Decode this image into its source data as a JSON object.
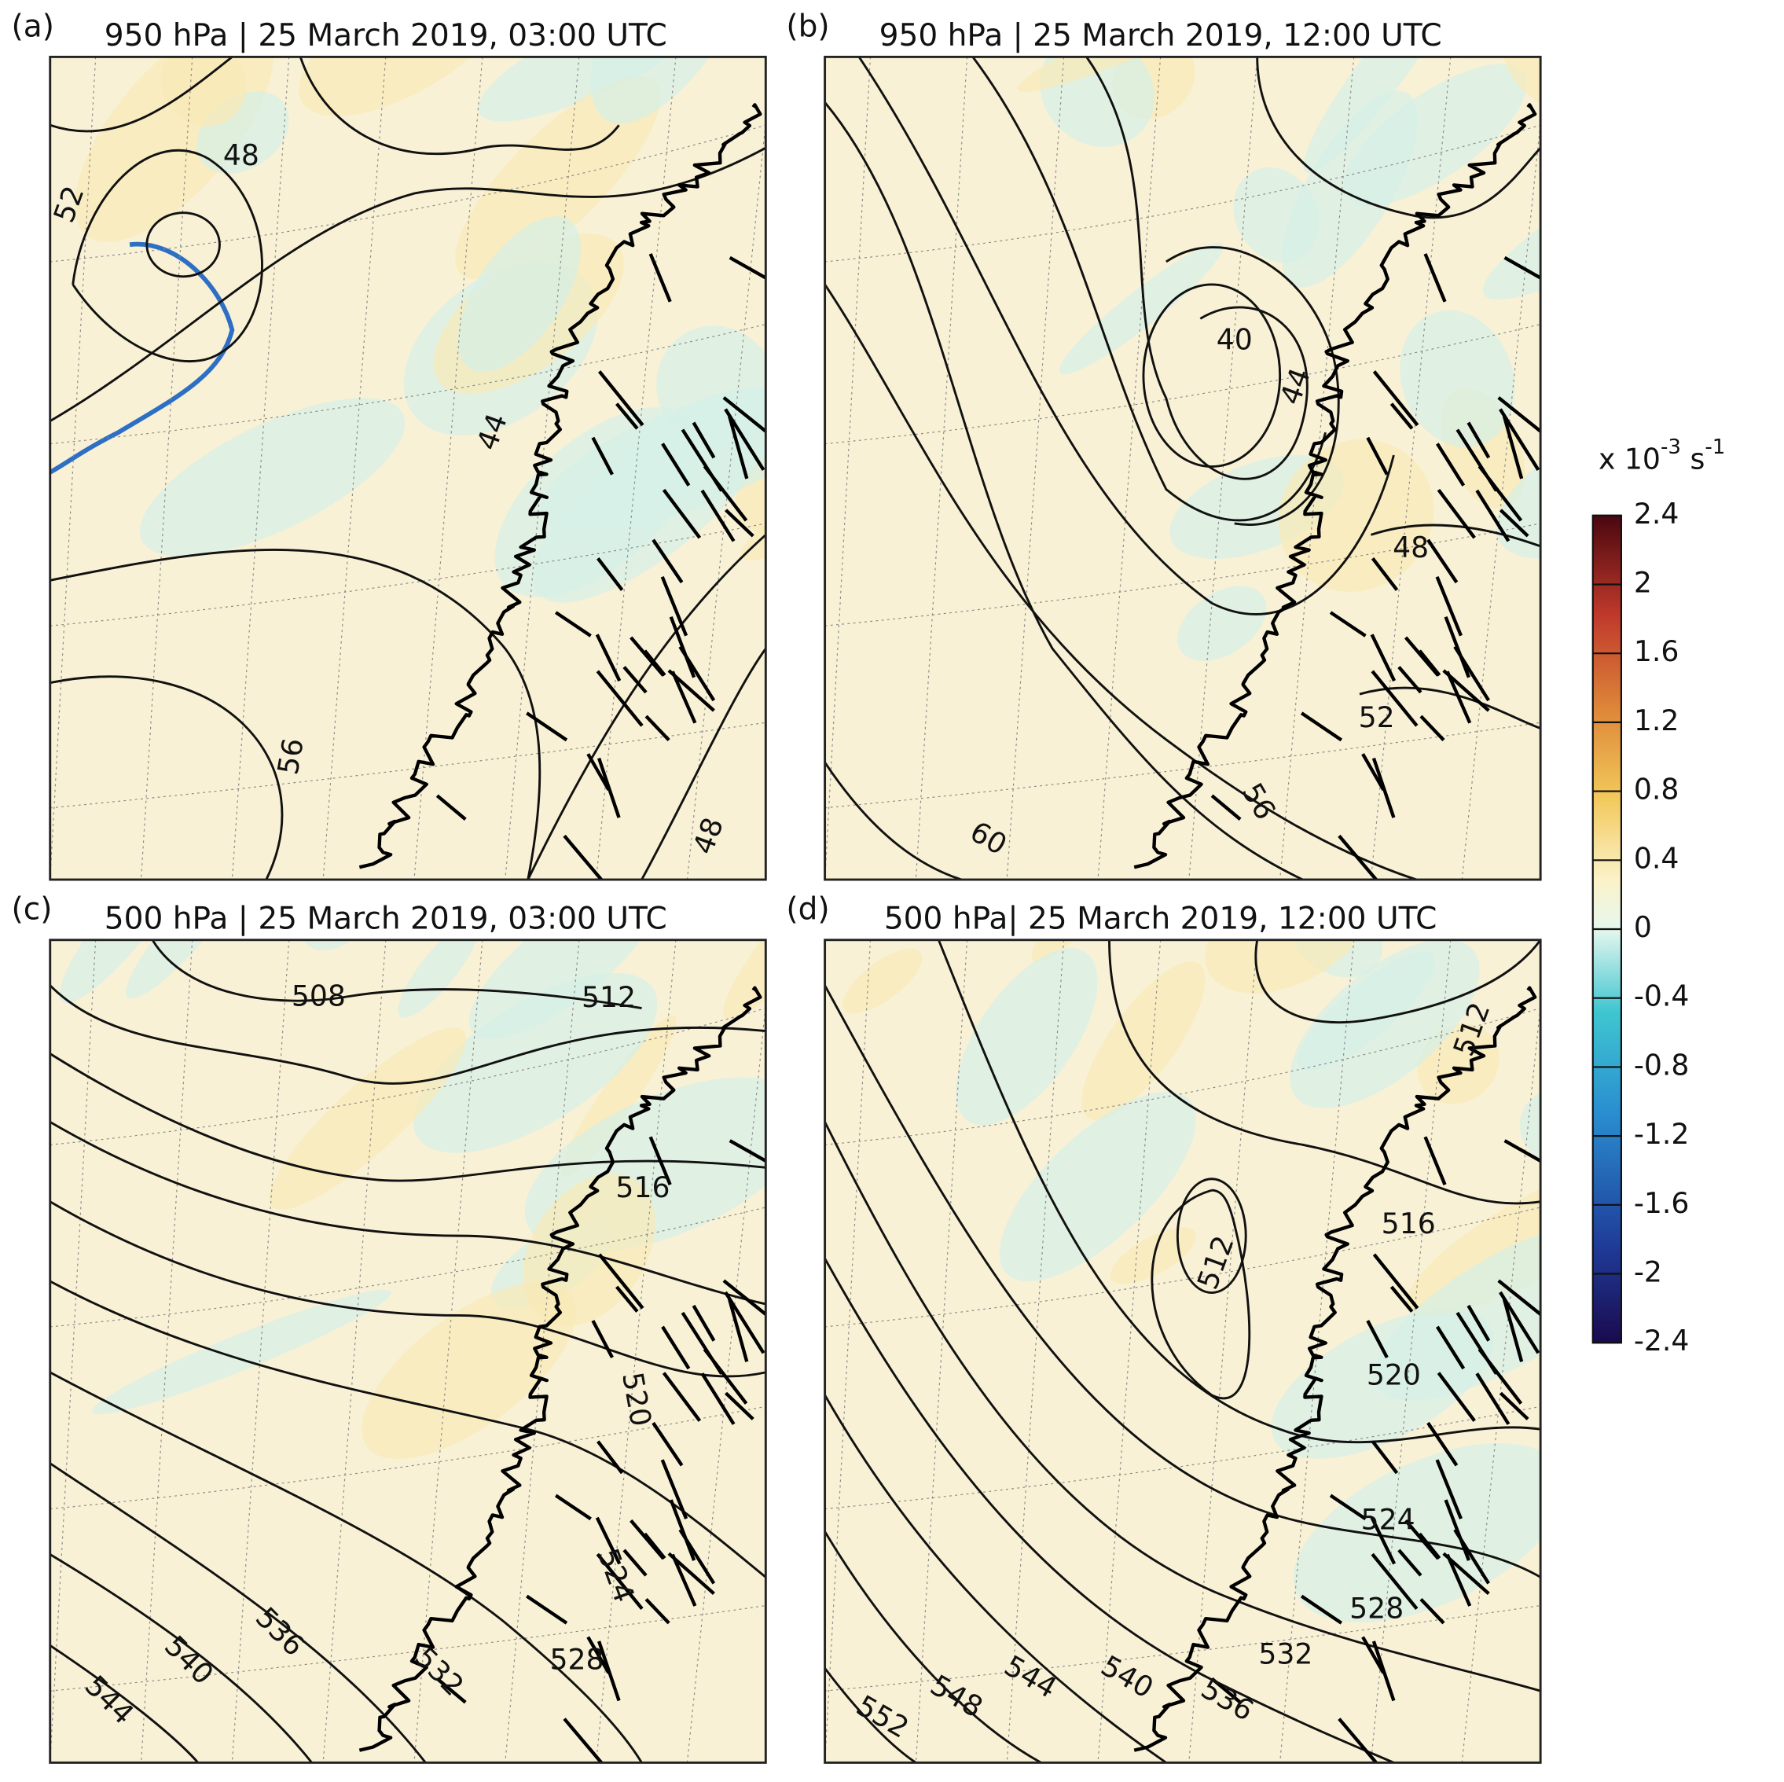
{
  "panels": [
    {
      "label": "(a)",
      "title": "950 hPa | 25 March 2019, 03:00 UTC",
      "contour_labels": [
        "48",
        "52",
        "56",
        "44",
        "48"
      ]
    },
    {
      "label": "(b)",
      "title": "950 hPa | 25 March 2019, 12:00 UTC",
      "contour_labels": [
        "40",
        "44",
        "48",
        "52",
        "56",
        "60"
      ]
    },
    {
      "label": "(c)",
      "title": "500 hPa | 25 March 2019, 03:00 UTC",
      "contour_labels": [
        "508",
        "512",
        "516",
        "520",
        "524",
        "528",
        "532",
        "536",
        "540",
        "544"
      ]
    },
    {
      "label": "(d)",
      "title": "500 hPa| 25 March 2019, 12:00 UTC",
      "contour_labels": [
        "512",
        "512",
        "516",
        "520",
        "524",
        "528",
        "532",
        "536",
        "540",
        "544",
        "548",
        "552"
      ]
    }
  ],
  "colorbar": {
    "label": {
      "base": "x 10",
      "base_exp": "-3",
      "unit": "s",
      "unit_exp": "-1"
    },
    "lim": [
      -2.4,
      2.4
    ],
    "ticks": [
      2.4,
      2,
      1.6,
      1.2,
      0.8,
      0.4,
      0,
      -0.4,
      -0.8,
      -1.2,
      -1.6,
      -2,
      -2.4
    ]
  }
}
